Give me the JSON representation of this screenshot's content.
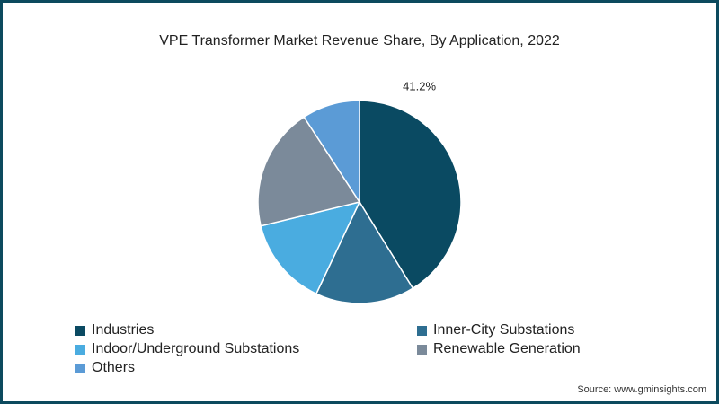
{
  "chart_data": {
    "type": "pie",
    "title": "VPE Transformer Market Revenue Share, By Application, 2022",
    "unit": "%",
    "categories": [
      "Industries",
      "Inner-City Substations",
      "Indoor/Underground Substations",
      "Renewable Generation",
      "Others"
    ],
    "values": [
      41.2,
      15.8,
      14.2,
      19.6,
      9.2
    ],
    "colors": [
      "#0a4a62",
      "#2e6e91",
      "#4aace0",
      "#7b8a9a",
      "#5b9bd6"
    ],
    "data_labels": [
      {
        "category": "Industries",
        "text": "41.2%"
      }
    ],
    "start_angle_deg": 0,
    "direction": "clockwise",
    "legend_position": "bottom"
  },
  "legend": {
    "items": [
      {
        "label": "Industries",
        "color": "#0a4a62"
      },
      {
        "label": "Inner-City Substations",
        "color": "#2e6e91"
      },
      {
        "label": "Indoor/Underground Substations",
        "color": "#4aace0"
      },
      {
        "label": "Renewable Generation",
        "color": "#7b8a9a"
      },
      {
        "label": "Others",
        "color": "#5b9bd6"
      }
    ]
  },
  "source": "Source: www.gminsights.com",
  "frame_color": "#0c4a5e"
}
